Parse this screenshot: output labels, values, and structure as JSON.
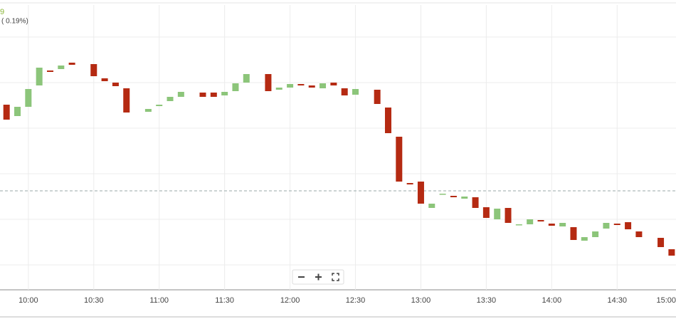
{
  "header": {
    "value": "9",
    "change": "( 0.19%)"
  },
  "chart_data": {
    "type": "candlestick",
    "x": [
      590,
      595,
      600,
      605,
      610,
      615,
      620,
      630,
      635,
      640,
      645,
      655,
      660,
      665,
      670,
      680,
      685,
      690,
      695,
      700,
      710,
      715,
      720,
      725,
      730,
      735,
      740,
      745,
      750,
      760,
      765,
      770,
      775,
      780,
      785,
      790,
      795,
      800,
      805,
      810,
      815,
      820,
      825,
      830,
      835,
      840,
      845,
      850,
      855,
      860,
      865,
      870,
      875,
      880,
      890,
      895
    ],
    "open": [
      260,
      244,
      257,
      287,
      308,
      310,
      319,
      317,
      297,
      291,
      283,
      250,
      258,
      265,
      271,
      277,
      277,
      273,
      279,
      291,
      303,
      281,
      284,
      289,
      287,
      283,
      291,
      283,
      274,
      281,
      256,
      215,
      150,
      152,
      115,
      134,
      132,
      128,
      130,
      116,
      99,
      115,
      91,
      92,
      98,
      93,
      89,
      88,
      69,
      74,
      86,
      93,
      95,
      82,
      73,
      57
    ],
    "close": [
      239,
      257,
      282,
      312,
      306,
      315,
      316,
      300,
      293,
      286,
      249,
      254,
      260,
      271,
      278,
      271,
      271,
      278,
      290,
      303,
      279,
      284,
      289,
      287,
      284,
      290,
      287,
      273,
      282,
      261,
      220,
      152,
      148,
      121,
      121,
      135,
      130,
      131,
      115,
      101,
      114,
      94,
      92,
      99,
      96,
      90,
      94,
      70,
      74,
      82,
      94,
      91,
      85,
      74,
      60,
      48
    ],
    "up_color": "#8cc57a",
    "down_color": "#b52a12",
    "xlim": [
      587,
      897
    ],
    "xticks": [
      {
        "value": 600,
        "label": "10:00"
      },
      {
        "value": 630,
        "label": "10:30"
      },
      {
        "value": 660,
        "label": "11:00"
      },
      {
        "value": 690,
        "label": "11:30"
      },
      {
        "value": 720,
        "label": "12:00"
      },
      {
        "value": 750,
        "label": "12:30"
      },
      {
        "value": 780,
        "label": "13:00"
      },
      {
        "value": 810,
        "label": "13:30"
      },
      {
        "value": 840,
        "label": "14:00"
      },
      {
        "value": 870,
        "label": "14:30"
      },
      {
        "value": 900,
        "label": "15:00"
      }
    ],
    "ylim": [
      0,
      400
    ],
    "yticks": [
      35,
      99,
      163,
      227,
      291,
      355
    ],
    "grid": true,
    "reference_line": 139
  }
}
